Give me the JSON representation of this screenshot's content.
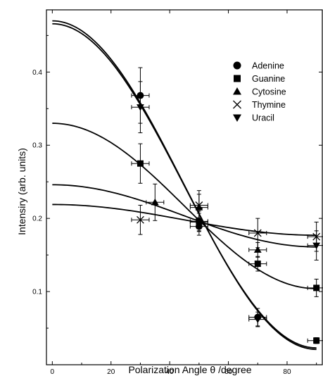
{
  "chart_data": {
    "type": "scatter",
    "xlabel": "Polarization Angle θ /degree",
    "ylabel": "Intensiry (arb. units)",
    "xlim": [
      -2,
      92
    ],
    "ylim": [
      0.0,
      0.485
    ],
    "xticks": [
      0,
      20,
      40,
      60,
      80
    ],
    "yticks": [
      0.1,
      0.2,
      0.3,
      0.4
    ],
    "xtick_labels": [
      "0",
      "20",
      "40",
      "60",
      "80"
    ],
    "ytick_labels": [
      "0.1",
      "0.2",
      "0.3",
      "0.4"
    ],
    "legend_placement": "top-right",
    "series": [
      {
        "name": "Adenine",
        "marker": "circle",
        "points": [
          {
            "x": 30,
            "y": 0.368,
            "yerr": 0.038,
            "xerr": 3
          },
          {
            "x": 50,
            "y": 0.189,
            "yerr": 0.012,
            "xerr": 3
          },
          {
            "x": 70,
            "y": 0.065,
            "yerr": 0.012,
            "xerr": 3
          }
        ]
      },
      {
        "name": "Guanine",
        "marker": "square",
        "points": [
          {
            "x": 30,
            "y": 0.275,
            "yerr": 0.027,
            "xerr": 3
          },
          {
            "x": 50,
            "y": 0.196,
            "yerr": 0.014,
            "xerr": 3
          },
          {
            "x": 70,
            "y": 0.138,
            "yerr": 0.01,
            "xerr": 3
          },
          {
            "x": 90,
            "y": 0.105,
            "yerr": 0.012,
            "xerr": 3
          },
          {
            "x": 90,
            "y": 0.033,
            "yerr": 0.004,
            "xerr": 3
          }
        ]
      },
      {
        "name": "Cytosine",
        "marker": "triangle-up",
        "points": [
          {
            "x": 35,
            "y": 0.222,
            "yerr": 0.025,
            "xerr": 3
          },
          {
            "x": 50,
            "y": 0.215,
            "yerr": 0.018,
            "xerr": 3
          },
          {
            "x": 70,
            "y": 0.157,
            "yerr": 0.01,
            "xerr": 3
          }
        ]
      },
      {
        "name": "Thymine",
        "marker": "x",
        "points": [
          {
            "x": 30,
            "y": 0.198,
            "yerr": 0.02,
            "xerr": 3
          },
          {
            "x": 50,
            "y": 0.218,
            "yerr": 0.02,
            "xerr": 3
          },
          {
            "x": 70,
            "y": 0.18,
            "yerr": 0.02,
            "xerr": 3
          },
          {
            "x": 90,
            "y": 0.175,
            "yerr": 0.02,
            "xerr": 3
          }
        ]
      },
      {
        "name": "Uracil",
        "marker": "triangle-down",
        "points": [
          {
            "x": 30,
            "y": 0.352,
            "yerr": 0.035,
            "xerr": 3
          },
          {
            "x": 50,
            "y": 0.195,
            "yerr": 0.012,
            "xerr": 3
          },
          {
            "x": 70,
            "y": 0.062,
            "yerr": 0.01,
            "xerr": 3
          },
          {
            "x": 90,
            "y": 0.163,
            "yerr": 0.02,
            "xerr": 3
          }
        ]
      }
    ],
    "fit_curves": [
      {
        "y0": 0.47,
        "y90": 0.021
      },
      {
        "y0": 0.466,
        "y90": 0.023
      },
      {
        "y0": 0.33,
        "y90": 0.104
      },
      {
        "y0": 0.246,
        "y90": 0.161
      },
      {
        "y0": 0.219,
        "y90": 0.177
      }
    ]
  }
}
